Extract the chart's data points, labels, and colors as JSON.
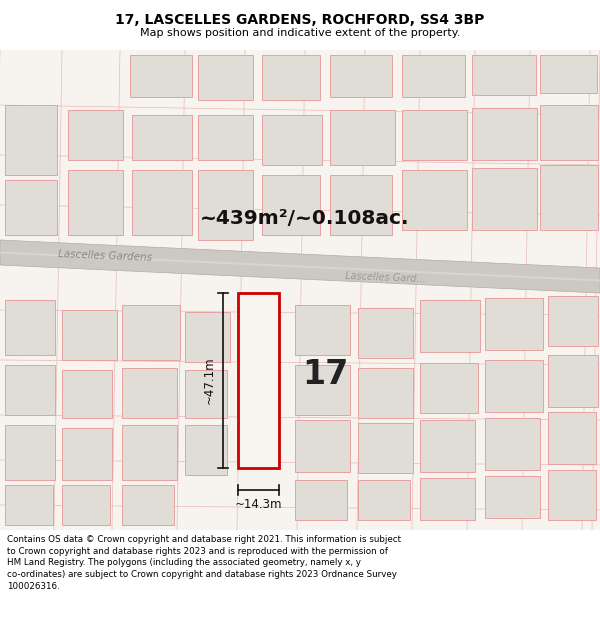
{
  "title_line1": "17, LASCELLES GARDENS, ROCHFORD, SS4 3BP",
  "title_line2": "Map shows position and indicative extent of the property.",
  "area_text": "~439m²/~0.108ac.",
  "property_number": "17",
  "dim_vertical": "~47.1m",
  "dim_horizontal": "~14.3m",
  "street_label_left": "Lascelles Gardens",
  "street_label_right": "Lascelles Gard...",
  "footer_text": "Contains OS data © Crown copyright and database right 2021. This information is subject to Crown copyright and database rights 2023 and is reproduced with the permission of HM Land Registry. The polygons (including the associated geometry, namely x, y co-ordinates) are subject to Crown copyright and database rights 2023 Ordnance Survey 100026316.",
  "bg_color": "#f7f4f0",
  "road_fill": "#d8d5cf",
  "road_edge": "#b8b5af",
  "building_fill": "#e0dcd6",
  "building_edge_light": "#e8a0a0",
  "plot_fill": "#f8f5f0",
  "plot_edge": "#cc0000",
  "grid_line_color": "#e8b8b8",
  "title_bg": "#ffffff",
  "footer_bg": "#ffffff",
  "dim_color": "#111111"
}
